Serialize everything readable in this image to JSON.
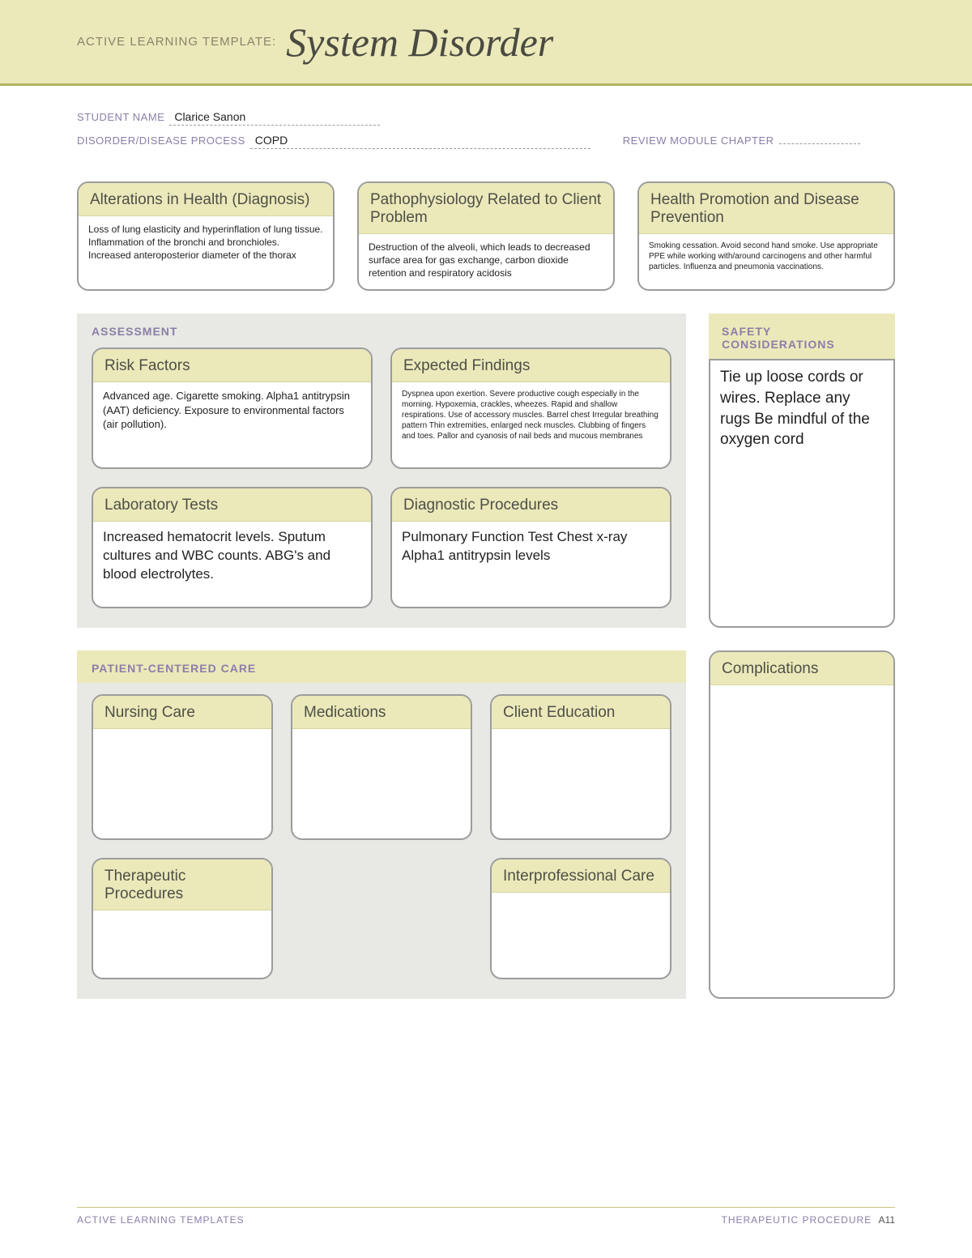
{
  "colors": {
    "banner_bg": "#ebe9ba",
    "accent_border": "#b5b35a",
    "card_border": "#9c9c9c",
    "section_bg": "#e8e8e4",
    "label_purple": "#8b7ea8",
    "text_dark": "#4a4a42"
  },
  "banner": {
    "prefix": "ACTIVE LEARNING TEMPLATE:",
    "title": "System Disorder"
  },
  "form": {
    "student_label": "STUDENT NAME",
    "student_value": "Clarice Sanon",
    "disease_label": "DISORDER/DISEASE PROCESS",
    "disease_value": "COPD",
    "review_label": "REVIEW MODULE CHAPTER",
    "review_value": ""
  },
  "top_cards": {
    "alterations": {
      "title": "Alterations in Health (Diagnosis)",
      "body": "Loss of lung elasticity and hyperinflation of lung tissue. Inflammation of the bronchi and bronchioles. Increased anteroposterior diameter of the thorax"
    },
    "pathophysiology": {
      "title": "Pathophysiology Related to Client Problem",
      "body": "Destruction of the alveoli, which leads to decreased surface area for gas exchange, carbon dioxide retention and respiratory acidosis"
    },
    "health_promotion": {
      "title": "Health Promotion and Disease Prevention",
      "body": "Smoking cessation. Avoid second hand smoke. Use appropriate PPE while working with/around carcinogens and other harmful particles. Influenza and pneumonia vaccinations."
    }
  },
  "assessment": {
    "section_title": "ASSESSMENT",
    "risk_factors": {
      "title": "Risk Factors",
      "body": "Advanced age. Cigarette smoking. Alpha1 antitrypsin (AAT) deficiency. Exposure to environmental factors (air pollution)."
    },
    "expected_findings": {
      "title": "Expected Findings",
      "body": "Dyspnea upon exertion. Severe productive cough especially in the morning. Hypoxemia, crackles, wheezes. Rapid and shallow respirations. Use of accessory muscles. Barrel chest Irregular breathing pattern Thin extremities, enlarged neck muscles. Clubbing of fingers and toes. Pallor and cyanosis of nail beds and mucous membranes"
    },
    "lab_tests": {
      "title": "Laboratory Tests",
      "body": "Increased hematocrit levels. Sputum cultures and WBC counts. ABG's and blood electrolytes."
    },
    "diagnostic_procedures": {
      "title": "Diagnostic Procedures",
      "body": "Pulmonary Function Test Chest x-ray Alpha1 antitrypsin levels"
    }
  },
  "safety": {
    "section_title": "SAFETY CONSIDERATIONS",
    "body": "Tie up loose cords or wires.  Replace any rugs Be mindful of the oxygen cord"
  },
  "pcc": {
    "section_title": "PATIENT-CENTERED CARE",
    "nursing_care": {
      "title": "Nursing Care",
      "body": ""
    },
    "medications": {
      "title": "Medications",
      "body": ""
    },
    "client_education": {
      "title": "Client Education",
      "body": ""
    },
    "therapeutic_procedures": {
      "title": "Therapeutic Procedures",
      "body": ""
    },
    "interprofessional_care": {
      "title": "Interprofessional Care",
      "body": ""
    }
  },
  "complications": {
    "title": "Complications",
    "body": ""
  },
  "footer": {
    "left": "ACTIVE LEARNING TEMPLATES",
    "right_label": "THERAPEUTIC PROCEDURE",
    "page": "A11"
  }
}
